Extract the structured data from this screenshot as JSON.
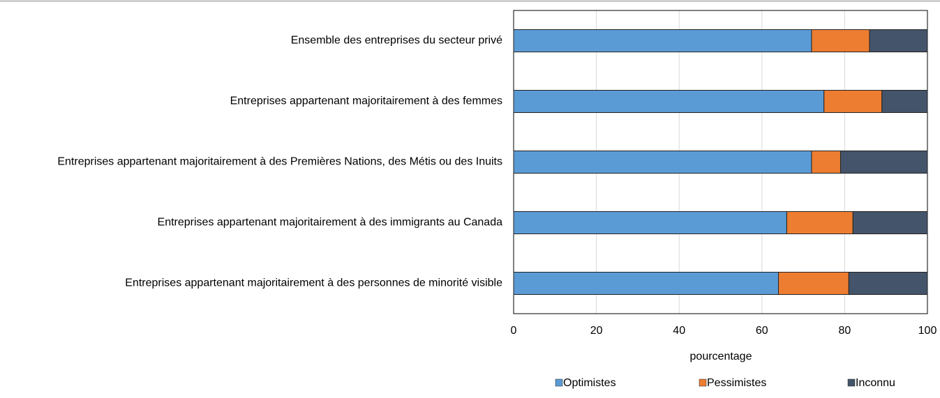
{
  "chart_data": {
    "type": "stacked-barh",
    "categories": [
      "Ensemble des entreprises du secteur privé",
      "Entreprises appartenant majoritairement à des femmes",
      "Entreprises appartenant majoritairement à des Premières Nations, des Métis ou des Inuits",
      "Entreprises appartenant majoritairement à des immigrants au Canada",
      "Entreprises appartenant majoritairement à des personnes de minorité visible"
    ],
    "series": [
      {
        "name": "Optimistes",
        "color": "#5b9bd5",
        "values": [
          72,
          75,
          72,
          66,
          64
        ]
      },
      {
        "name": "Pessimistes",
        "color": "#ed7d31",
        "values": [
          14,
          14,
          7,
          16,
          17
        ]
      },
      {
        "name": "Inconnu",
        "color": "#44546a",
        "values": [
          14,
          11,
          21,
          18,
          19
        ]
      }
    ],
    "xlabel": "pourcentage",
    "xlim": [
      0,
      100
    ],
    "xticks": [
      0,
      20,
      40,
      60,
      80,
      100
    ],
    "grid": true,
    "legend": "bottom"
  }
}
